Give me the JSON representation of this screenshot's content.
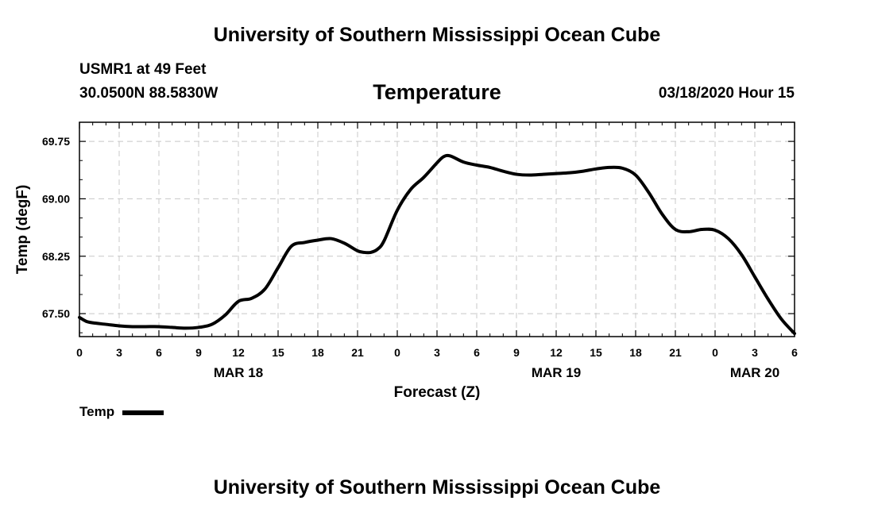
{
  "header": {
    "title": "University of Southern Mississippi Ocean Cube",
    "station": "USMR1 at 49 Feet",
    "coordinates": "30.0500N 88.5830W",
    "run_time": "03/18/2020 Hour 15"
  },
  "footer": {
    "title": "University of Southern Mississippi Ocean Cube"
  },
  "legend": {
    "label": "Temp"
  },
  "colors": {
    "line": "#000000",
    "grid": "#c8c8c8",
    "background": "#ffffff"
  },
  "chart_data": {
    "type": "line",
    "title": "Temperature",
    "xlabel": "Forecast (Z)",
    "ylabel": "Temp (degF)",
    "grid": true,
    "xlim": [
      0,
      54
    ],
    "ylim": [
      67.2,
      70.0
    ],
    "x_ticks": [
      0,
      3,
      6,
      9,
      12,
      15,
      18,
      21,
      24,
      27,
      30,
      33,
      36,
      39,
      42,
      45,
      48,
      51,
      54
    ],
    "x_tick_labels": [
      "0",
      "3",
      "6",
      "9",
      "12",
      "15",
      "18",
      "21",
      "0",
      "3",
      "6",
      "9",
      "12",
      "15",
      "18",
      "21",
      "0",
      "3",
      "6"
    ],
    "y_ticks": [
      67.5,
      68.25,
      69.0,
      69.75
    ],
    "y_tick_labels": [
      "67.50",
      "68.25",
      "69.00",
      "69.75"
    ],
    "date_labels": [
      {
        "label": "MAR 18",
        "x": 12
      },
      {
        "label": "MAR 19",
        "x": 36
      },
      {
        "label": "MAR 20",
        "x": 51
      }
    ],
    "series": [
      {
        "name": "Temp",
        "x": [
          0,
          0.5,
          1,
          2,
          3,
          4,
          5,
          6,
          7,
          8,
          9,
          10,
          11,
          12,
          13,
          14,
          15,
          16,
          17,
          18,
          19,
          20,
          21,
          21.5,
          22,
          22.5,
          23,
          24,
          25,
          26,
          27,
          27.5,
          28,
          29,
          30,
          31,
          32,
          33,
          34,
          35,
          36,
          37,
          38,
          39,
          40,
          41,
          42,
          43,
          44,
          45,
          46,
          47,
          48,
          49,
          50,
          51,
          52,
          53,
          54
        ],
        "y": [
          67.45,
          67.4,
          67.38,
          67.36,
          67.34,
          67.33,
          67.33,
          67.33,
          67.32,
          67.31,
          67.32,
          67.36,
          67.48,
          67.66,
          67.7,
          67.82,
          68.1,
          68.38,
          68.43,
          68.46,
          68.48,
          68.42,
          68.32,
          68.3,
          68.3,
          68.34,
          68.45,
          68.85,
          69.12,
          69.28,
          69.47,
          69.55,
          69.56,
          69.48,
          69.44,
          69.41,
          69.36,
          69.32,
          69.31,
          69.32,
          69.33,
          69.34,
          69.36,
          69.39,
          69.41,
          69.4,
          69.31,
          69.08,
          68.8,
          68.6,
          68.57,
          68.6,
          68.59,
          68.48,
          68.27,
          67.98,
          67.69,
          67.43,
          67.24
        ]
      }
    ]
  }
}
